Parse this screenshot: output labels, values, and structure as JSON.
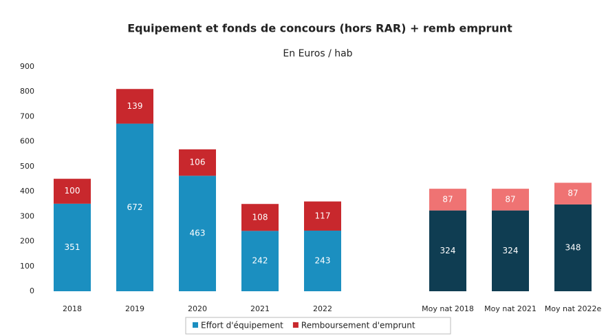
{
  "chart_data": {
    "type": "stacked_bar",
    "title": "Equipement et fonds de concours (hors RAR) + remb emprunt",
    "subtitle": "En Euros / hab",
    "categories": [
      "2018",
      "2019",
      "2020",
      "2021",
      "2022",
      null,
      "Moy nat 2018",
      "Moy nat 2021",
      "Moy nat 2022e"
    ],
    "series": [
      {
        "name": "Effort d'équipement",
        "color": "#1b8fc0",
        "colors": [
          "#1b8fc0",
          "#1b8fc0",
          "#1b8fc0",
          "#1b8fc0",
          "#1b8fc0",
          null,
          "#0f3d52",
          "#0f3d52",
          "#0f3d52"
        ],
        "values": [
          351,
          672,
          463,
          242,
          243,
          null,
          324,
          324,
          348
        ]
      },
      {
        "name": "Remboursement d'emprunt",
        "color": "#c8282d",
        "colors": [
          "#c8282d",
          "#c8282d",
          "#c8282d",
          "#c8282d",
          "#c8282d",
          null,
          "#ef7373",
          "#ef7373",
          "#ef7373"
        ],
        "values": [
          100,
          139,
          106,
          108,
          117,
          null,
          87,
          87,
          87
        ]
      }
    ],
    "ylim": [
      0,
      900
    ],
    "yticks": [
      0,
      100,
      200,
      300,
      400,
      500,
      600,
      700,
      800,
      900
    ],
    "grid": false,
    "legend": "bottom"
  }
}
